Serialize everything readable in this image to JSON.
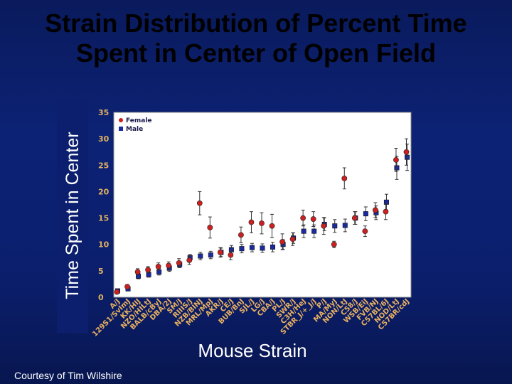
{
  "slide": {
    "title_line1": "Strain Distribution of Percent Time",
    "title_line2": "Spent in Center of Open Field",
    "courtesy": "Courtesy of Tim Wilshire"
  },
  "chart_data": {
    "type": "scatter",
    "title": "Strain Distribution of Percent Time Spent in Center of Open Field",
    "ylabel": "Time Spent in Center",
    "xlabel": "Mouse Strain",
    "ylim": [
      0,
      35
    ],
    "yticks": [
      "0",
      "5",
      "10",
      "15",
      "20",
      "25",
      "30",
      "35"
    ],
    "legend_position": "top-left",
    "categories": [
      "A/J",
      "129S1/SvImJ",
      "KK/HIJ",
      "NZO/HILtJ",
      "BALB/cByJ",
      "DBA/2J",
      "SM/J",
      "RIIIS/J",
      "NZB/BINJ",
      "MRL/MpJ",
      "AKR/J",
      "CE/J",
      "BUB/BnJ",
      "SJL/J",
      "LG/J",
      "CBA/J",
      "PL/J",
      "SWR/J",
      "C3H/HeJ",
      "STBR_J/+_J/J",
      "P/J",
      "MA/MyJ",
      "NON/LtJ",
      "C58/J",
      "WSB/EiJ",
      "FVB/NJ",
      "C57BL/6J",
      "NOD/LtJ",
      "C57BR/cdJ"
    ],
    "colors": {
      "female": "#cc2020",
      "male": "#1a2aa0",
      "plot_bg": "#ffffff",
      "tick_text": "#e0b060"
    },
    "series": [
      {
        "name": "Female",
        "values": [
          1.0,
          2.0,
          4.8,
          5.2,
          5.8,
          6.0,
          6.5,
          7.0,
          17.8,
          13.2,
          8.5,
          8.0,
          11.8,
          14.2,
          14.0,
          13.5,
          10.5,
          11.0,
          15.0,
          14.8,
          13.5,
          10.0,
          22.5,
          15.0,
          12.5,
          16.5,
          16.2,
          26.0,
          27.5
        ]
      },
      {
        "name": "Male",
        "values": [
          1.2,
          1.6,
          4.0,
          4.3,
          4.8,
          5.5,
          6.2,
          7.5,
          7.8,
          8.0,
          8.5,
          9.0,
          9.2,
          9.4,
          9.3,
          9.5,
          10.0,
          11.2,
          12.5,
          12.5,
          13.8,
          13.5,
          13.6,
          15.0,
          15.8,
          16.0,
          18.0,
          24.5,
          26.5
        ]
      }
    ]
  }
}
